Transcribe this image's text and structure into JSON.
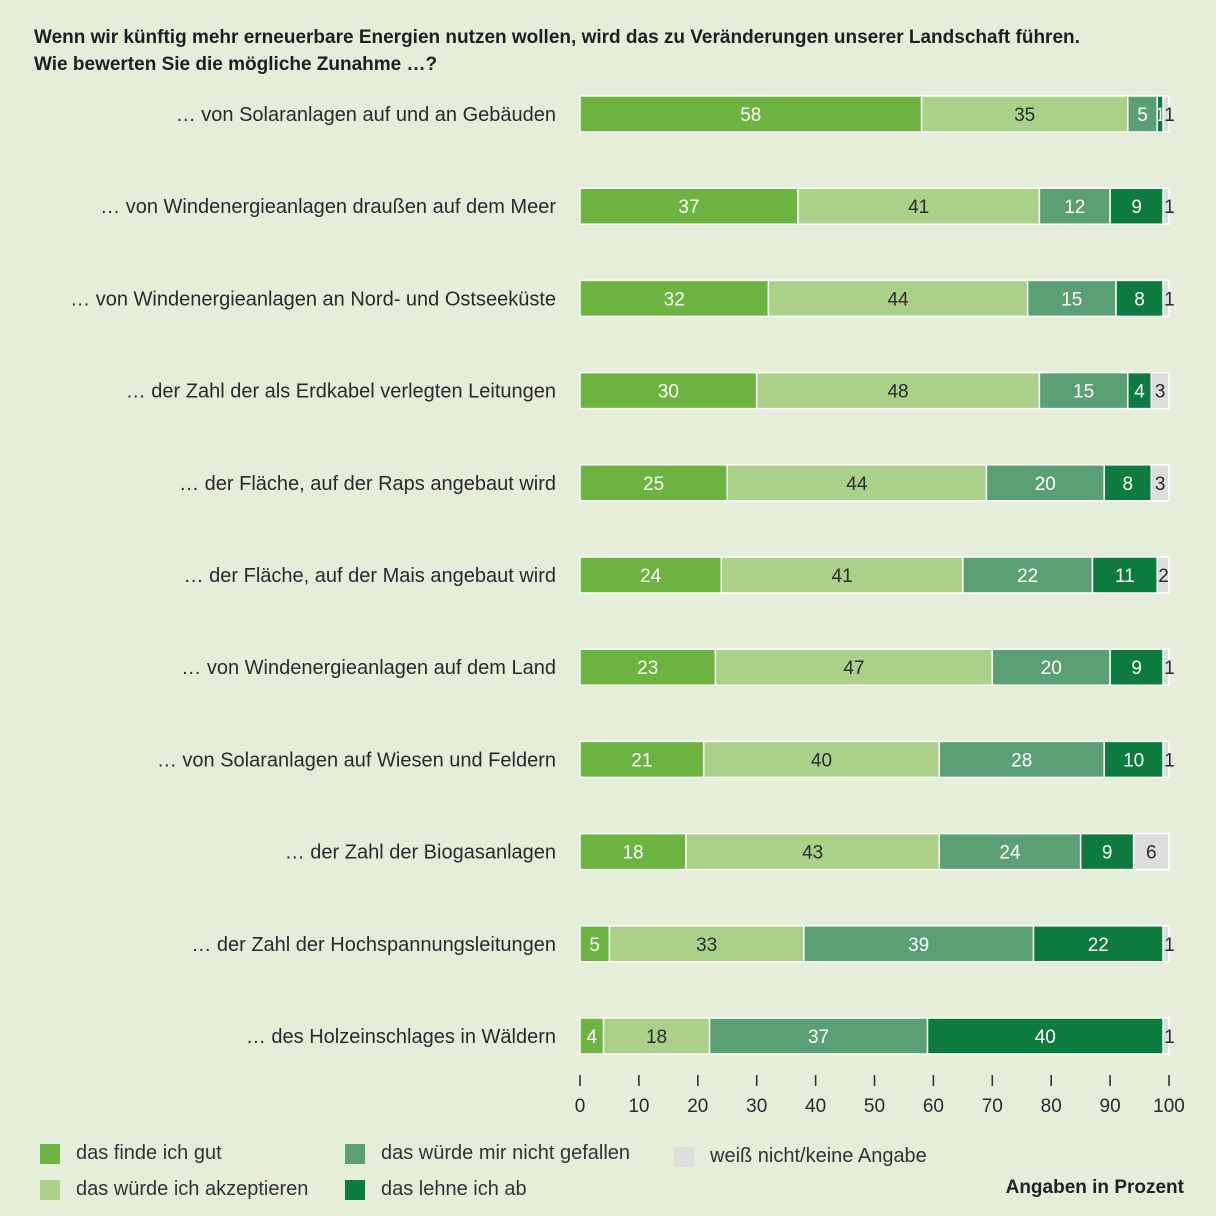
{
  "chart_data": {
    "type": "bar",
    "orientation": "horizontal",
    "stacked": true,
    "title": "Wenn wir künftig mehr erneuerbare Energien nutzen wollen, wird das zu Veränderungen unserer Landschaft führen.",
    "subtitle": "Wie bewerten Sie die mögliche Zunahme …?",
    "categories": [
      "… von Solaranlagen auf und an Gebäuden",
      "… von Windenergieanlagen draußen auf dem Meer",
      "… von Windenergieanlagen an Nord- und Ostseeküste",
      "… der Zahl der als Erdkabel verlegten Leitungen",
      "… der Fläche, auf der Raps angebaut wird",
      "… der Fläche, auf der Mais angebaut wird",
      "… von Windenergieanlagen auf dem Land",
      "… von Solaranlagen auf Wiesen und Feldern",
      "… der Zahl der Biogasanlagen",
      "… der Zahl der Hochspannungsleitungen",
      "… des Holzeinschlages in Wäldern"
    ],
    "series": [
      {
        "name": "das finde ich gut",
        "color": "#6db33f",
        "label_color": "#ffffff",
        "values": [
          58,
          37,
          32,
          30,
          25,
          24,
          23,
          21,
          18,
          5,
          4
        ]
      },
      {
        "name": "das würde ich akzeptieren",
        "color": "#abd08a",
        "label_color": "#2b2b2b",
        "values": [
          35,
          41,
          44,
          48,
          44,
          41,
          47,
          40,
          43,
          33,
          18
        ]
      },
      {
        "name": "das würde mir nicht gefallen",
        "color": "#5b9f75",
        "label_color": "#ffffff",
        "values": [
          5,
          12,
          15,
          15,
          20,
          22,
          20,
          28,
          24,
          39,
          37
        ]
      },
      {
        "name": "das lehne ich ab",
        "color": "#0d7a3f",
        "label_color": "#ffffff",
        "values": [
          1,
          9,
          8,
          4,
          8,
          11,
          9,
          10,
          9,
          22,
          40
        ]
      },
      {
        "name": "weiß nicht/keine Angabe",
        "color": "#dcdddc",
        "label_color": "#2b2b2b",
        "values": [
          1,
          1,
          1,
          3,
          3,
          2,
          1,
          1,
          6,
          1,
          1
        ]
      }
    ],
    "xlim": [
      0,
      100
    ],
    "xticks": [
      0,
      10,
      20,
      30,
      40,
      50,
      60,
      70,
      80,
      90,
      100
    ],
    "grid": false,
    "legend_position": "bottom",
    "unit_note": "Angaben in Prozent"
  }
}
